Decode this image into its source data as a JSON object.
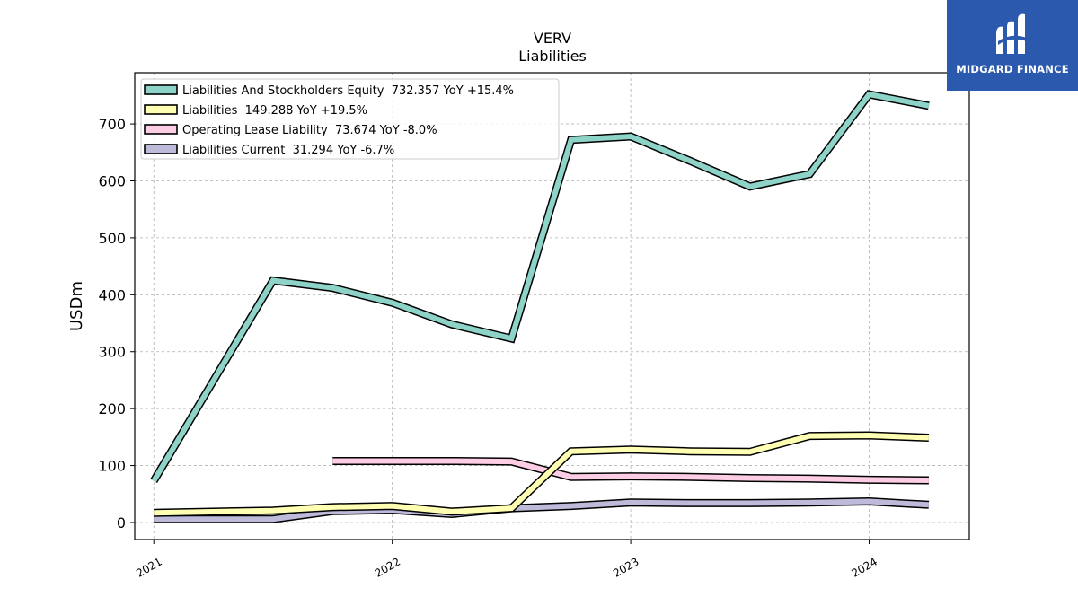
{
  "header": {
    "logo_text": "MIDGARD FINANCE",
    "logo_color": "#2a59ae"
  },
  "chart_data": {
    "type": "line",
    "title": "VERV",
    "subtitle": "Liabilities",
    "xlabel": "",
    "ylabel": "USDm",
    "xlim": [
      2020.92,
      2024.42
    ],
    "ylim": [
      -30,
      790
    ],
    "x_ticks": [
      2021,
      2022,
      2023,
      2024
    ],
    "x_tick_labels": [
      "2021",
      "2022",
      "2023",
      "2024"
    ],
    "y_ticks": [
      0,
      100,
      200,
      300,
      400,
      500,
      600,
      700
    ],
    "y_tick_labels": [
      "0",
      "100",
      "200",
      "300",
      "400",
      "500",
      "600",
      "700"
    ],
    "grid": true,
    "legend_position": "top-left",
    "series": [
      {
        "name": "Liabilities And Stockholders Equity",
        "legend": "Liabilities And Stockholders Equity  732.357 YoY +15.4%",
        "color": "#8dd3c7",
        "x": [
          "2021-01-01",
          "2021-07-01",
          "2021-10-01",
          "2022-01-01",
          "2022-04-01",
          "2022-07-01",
          "2022-10-01",
          "2023-01-01",
          "2023-04-01",
          "2023-07-01",
          "2023-10-01",
          "2024-01-01",
          "2024-04-01"
        ],
        "values": [
          73,
          425,
          412,
          386,
          348,
          323,
          672,
          678,
          635,
          590,
          612,
          752,
          732
        ]
      },
      {
        "name": "Liabilities",
        "legend": "Liabilities  149.288 YoY +19.5%",
        "color": "#ffffb3",
        "x": [
          "2021-01-01",
          "2021-07-01",
          "2021-10-01",
          "2022-01-01",
          "2022-04-01",
          "2022-07-01",
          "2022-10-01",
          "2023-01-01",
          "2023-04-01",
          "2023-07-01",
          "2023-10-01",
          "2024-01-01",
          "2024-04-01"
        ],
        "values": [
          17,
          21,
          27,
          29,
          19,
          25,
          125,
          128,
          125,
          124,
          152,
          153,
          149
        ]
      },
      {
        "name": "Operating Lease Liability",
        "legend": "Operating Lease Liability  73.674 YoY -8.0%",
        "color": "#fccde5",
        "x": [
          "2021-10-01",
          "2022-01-01",
          "2022-04-01",
          "2022-07-01",
          "2022-10-01",
          "2023-01-01",
          "2023-04-01",
          "2023-07-01",
          "2023-10-01",
          "2024-01-01",
          "2024-04-01"
        ],
        "values": [
          108,
          108,
          108,
          107,
          80,
          81,
          80,
          78,
          77,
          75,
          74
        ]
      },
      {
        "name": "Liabilities Current",
        "legend": "Liabilities Current  31.294 YoY -6.7%",
        "color": "#bebada",
        "x": [
          "2021-01-01",
          "2021-07-01",
          "2021-10-01",
          "2022-01-01",
          "2022-04-01",
          "2022-07-01",
          "2022-10-01",
          "2023-01-01",
          "2023-04-01",
          "2023-07-01",
          "2023-10-01",
          "2024-01-01",
          "2024-04-01"
        ],
        "values": [
          6,
          6,
          20,
          22,
          15,
          25,
          29,
          35,
          34,
          34,
          35,
          37,
          31
        ]
      }
    ]
  }
}
